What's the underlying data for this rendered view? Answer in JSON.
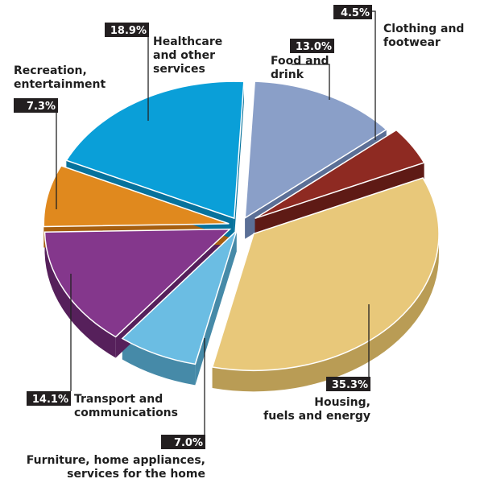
{
  "chart_data": {
    "type": "pie",
    "title": "",
    "slices": [
      {
        "name": "Food and drink",
        "label_lines": [
          "Food and",
          "drink"
        ],
        "value": 13.0,
        "value_label": "13.0%",
        "color": "#8a9fc8",
        "side_color": "#5b6f96"
      },
      {
        "name": "Clothing and footwear",
        "label_lines": [
          "Clothing and",
          "footwear"
        ],
        "value": 4.5,
        "value_label": "4.5%",
        "color": "#8e2a22",
        "side_color": "#5e1a15"
      },
      {
        "name": "Housing, fuels and energy",
        "label_lines": [
          "Housing,",
          "fuels and energy"
        ],
        "value": 35.3,
        "value_label": "35.3%",
        "color": "#e8c87a",
        "side_color": "#b99c55"
      },
      {
        "name": "Furniture, home appliances, services for the home",
        "label_lines": [
          "Furniture, home appliances,",
          "services for the home"
        ],
        "value": 7.0,
        "value_label": "7.0%",
        "color": "#6bbde3",
        "side_color": "#468aa8"
      },
      {
        "name": "Transport and communications",
        "label_lines": [
          "Transport and",
          "communications"
        ],
        "value": 14.1,
        "value_label": "14.1%",
        "color": "#84378c",
        "side_color": "#56205b"
      },
      {
        "name": "Recreation, entertainment",
        "label_lines": [
          "Recreation,",
          "entertainment"
        ],
        "value": 7.3,
        "value_label": "7.3%",
        "color": "#e0891e",
        "side_color": "#a65f10"
      },
      {
        "name": "Healthcare and other services",
        "label_lines": [
          "Healthcare",
          "and other",
          "services"
        ],
        "value": 18.9,
        "value_label": "18.9%",
        "color": "#0a9fd8",
        "side_color": "#06729c"
      }
    ],
    "start_angle_deg": 3,
    "exploded": true,
    "style": "3d"
  }
}
